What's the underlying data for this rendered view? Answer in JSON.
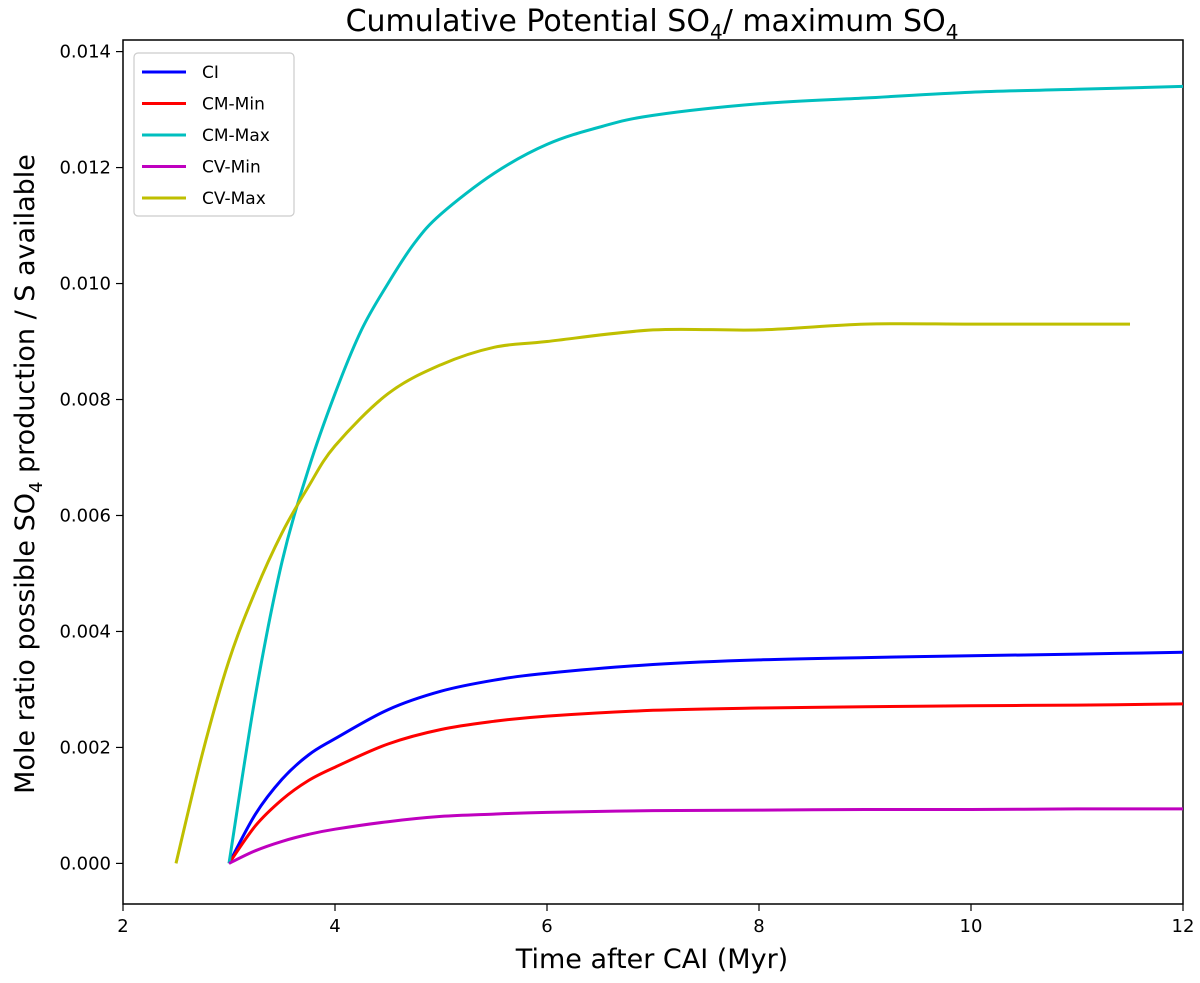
{
  "chart_data": {
    "type": "line",
    "title": {
      "main": "Cumulative Potential SO",
      "sub1": "4",
      "mid": "/ maximum SO",
      "sub2": "4"
    },
    "xlabel": "Time after CAI (Myr)",
    "ylabel": {
      "pre": "Mole ratio possible SO",
      "sub": "4",
      "post": " production / S available"
    },
    "xlim": [
      2,
      12
    ],
    "ylim": [
      -0.0007,
      0.0142
    ],
    "xticks": [
      2,
      4,
      6,
      8,
      10,
      12
    ],
    "xtick_labels": [
      "2",
      "4",
      "6",
      "8",
      "10",
      "12"
    ],
    "yticks": [
      0.0,
      0.002,
      0.004,
      0.006,
      0.008,
      0.01,
      0.012,
      0.014
    ],
    "ytick_labels": [
      "0.000",
      "0.002",
      "0.004",
      "0.006",
      "0.008",
      "0.010",
      "0.012",
      "0.014"
    ],
    "grid": false,
    "legend_position": "top-left",
    "series": [
      {
        "name": "CI",
        "color": "#0000ff",
        "x": [
          3.0,
          3.25,
          3.5,
          3.75,
          4.0,
          4.5,
          5.0,
          5.5,
          6.0,
          7.0,
          8.0,
          9.0,
          10.0,
          11.0,
          12.0
        ],
        "y": [
          0.0,
          0.00085,
          0.00145,
          0.00187,
          0.00215,
          0.00265,
          0.00297,
          0.00316,
          0.00328,
          0.00343,
          0.00351,
          0.00355,
          0.00358,
          0.00361,
          0.00364
        ]
      },
      {
        "name": "CM-Min",
        "color": "#ff0000",
        "x": [
          3.0,
          3.25,
          3.5,
          3.75,
          4.0,
          4.5,
          5.0,
          5.5,
          6.0,
          7.0,
          8.0,
          9.0,
          10.0,
          11.0,
          12.0
        ],
        "y": [
          0.0,
          0.00065,
          0.0011,
          0.00143,
          0.00166,
          0.00206,
          0.00231,
          0.00245,
          0.00254,
          0.00264,
          0.00268,
          0.0027,
          0.00272,
          0.00273,
          0.00275
        ]
      },
      {
        "name": "CM-Max",
        "color": "#00bfbf",
        "x": [
          3.0,
          3.25,
          3.5,
          3.75,
          4.0,
          4.25,
          4.5,
          4.75,
          5.0,
          5.5,
          6.0,
          6.5,
          7.0,
          8.0,
          9.0,
          10.0,
          11.0,
          12.0
        ],
        "y": [
          0.0,
          0.0029,
          0.0052,
          0.0068,
          0.0081,
          0.0092,
          0.01,
          0.0107,
          0.0112,
          0.0119,
          0.0124,
          0.0127,
          0.0129,
          0.0131,
          0.0132,
          0.0133,
          0.01335,
          0.0134
        ]
      },
      {
        "name": "CV-Min",
        "color": "#bf00bf",
        "x": [
          3.0,
          3.25,
          3.5,
          3.75,
          4.0,
          4.5,
          5.0,
          5.5,
          6.0,
          7.0,
          8.0,
          9.0,
          10.0,
          11.0,
          12.0
        ],
        "y": [
          0.0,
          0.00022,
          0.00038,
          0.0005,
          0.00059,
          0.00072,
          0.00081,
          0.00085,
          0.00088,
          0.00091,
          0.00092,
          0.00093,
          0.00093,
          0.00094,
          0.00094
        ]
      },
      {
        "name": "CV-Max",
        "color": "#bfbf00",
        "x": [
          2.5,
          2.75,
          3.0,
          3.25,
          3.5,
          3.75,
          4.0,
          4.5,
          5.0,
          5.5,
          6.0,
          7.0,
          8.0,
          9.0,
          10.0,
          11.0,
          11.5
        ],
        "y": [
          0.0,
          0.0019,
          0.0035,
          0.0047,
          0.0057,
          0.0065,
          0.0072,
          0.0081,
          0.0086,
          0.0089,
          0.009,
          0.0092,
          0.0092,
          0.0093,
          0.0093,
          0.0093,
          0.0093
        ]
      }
    ]
  }
}
